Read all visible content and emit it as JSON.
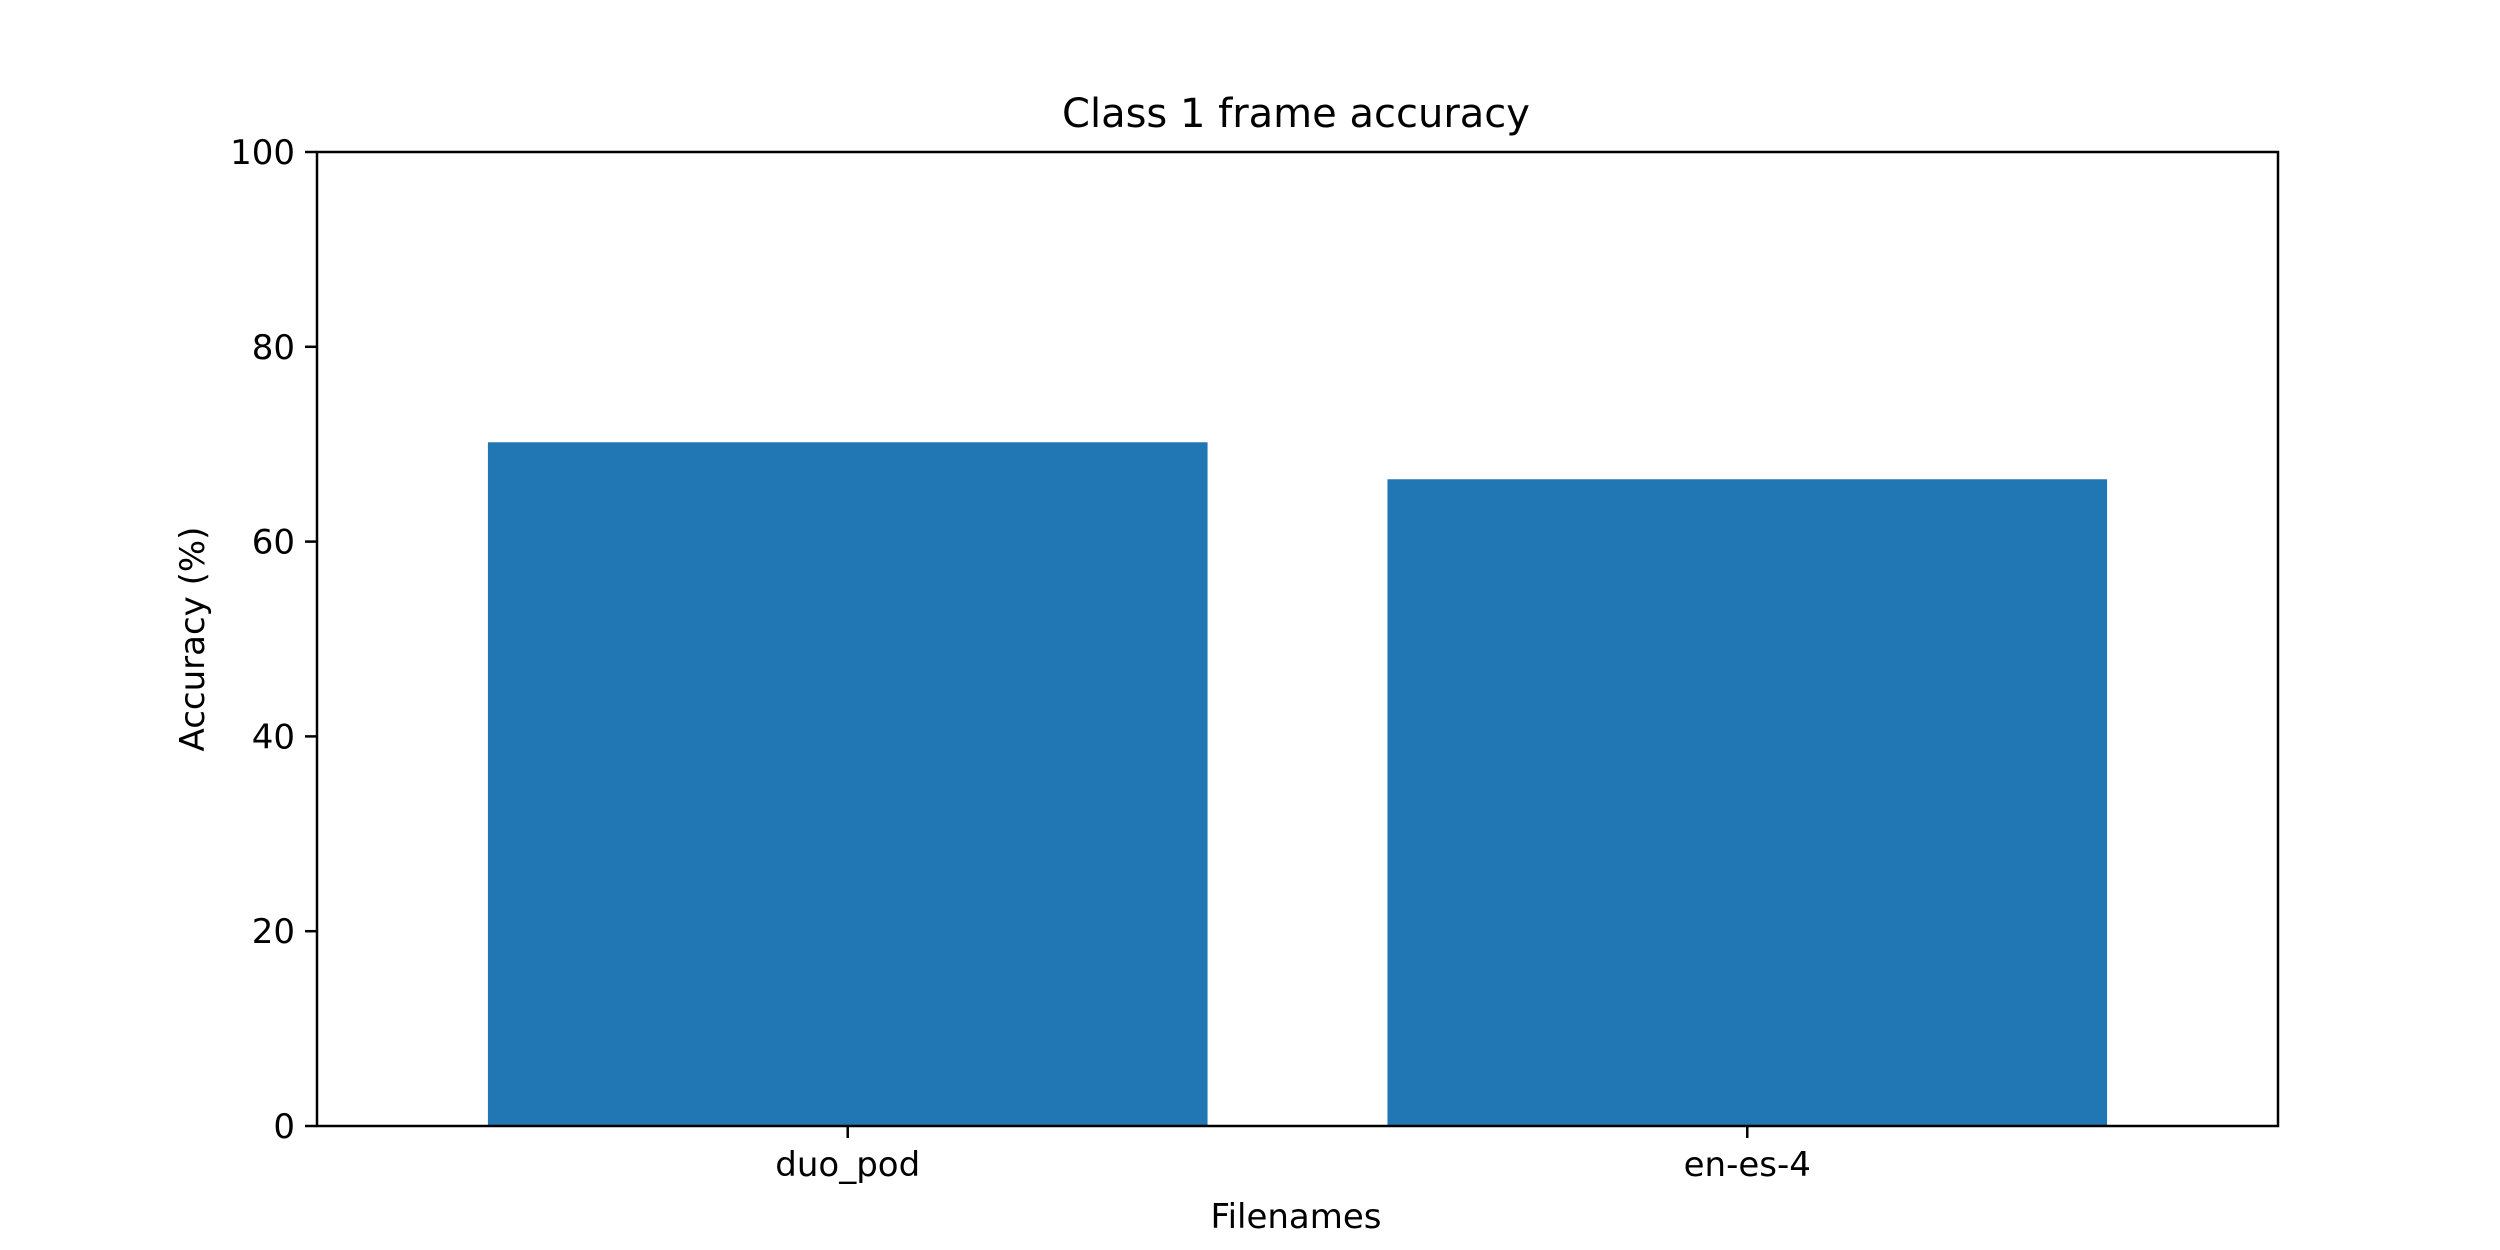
{
  "chart_data": {
    "type": "bar",
    "title": "Class 1 frame accuracy",
    "xlabel": "Filenames",
    "ylabel": "Accuracy (%)",
    "categories": [
      "duo_pod",
      "en-es-4"
    ],
    "values": [
      70.2,
      66.4
    ],
    "ylim": [
      0,
      100
    ],
    "yticks": [
      0,
      20,
      40,
      60,
      80,
      100
    ],
    "grid": false,
    "legend": "none",
    "bar_color": "#2077b4"
  }
}
